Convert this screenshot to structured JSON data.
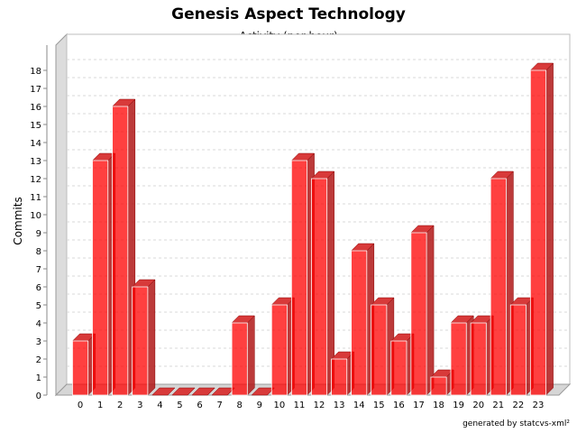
{
  "chart_data": {
    "type": "bar",
    "title": "Genesis Aspect Technology",
    "subtitle": "Activity (per hour)",
    "xlabel": "",
    "ylabel": "Commits",
    "categories": [
      "0",
      "1",
      "2",
      "3",
      "4",
      "5",
      "6",
      "7",
      "8",
      "9",
      "10",
      "11",
      "12",
      "13",
      "14",
      "15",
      "16",
      "17",
      "18",
      "19",
      "20",
      "21",
      "22",
      "23"
    ],
    "values": [
      3,
      13,
      16,
      6,
      0,
      0,
      0,
      0,
      4,
      0,
      5,
      13,
      12,
      2,
      8,
      5,
      3,
      9,
      1,
      4,
      4,
      12,
      5,
      18
    ],
    "ylim": [
      0,
      18
    ],
    "yticks": [
      "0",
      "1",
      "2",
      "3",
      "4",
      "5",
      "6",
      "7",
      "8",
      "9",
      "10",
      "11",
      "12",
      "13",
      "14",
      "15",
      "16",
      "17",
      "18"
    ],
    "grid": true,
    "bar_color": "#ff0000",
    "footer": "generated by statcvs-xml²"
  }
}
